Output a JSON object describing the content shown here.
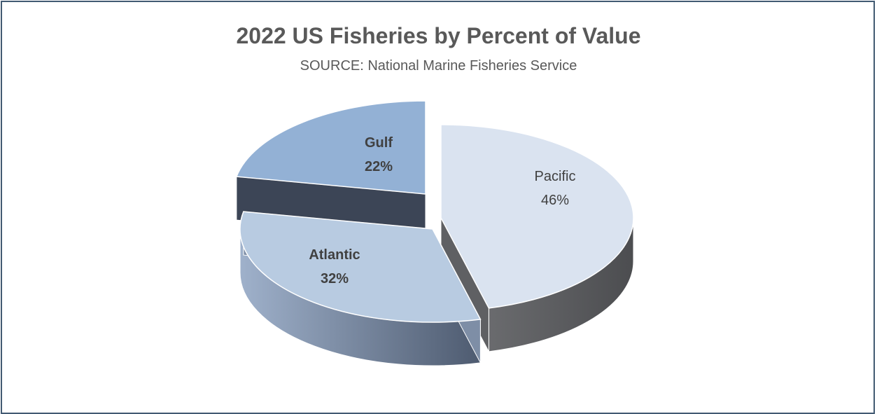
{
  "chart_data": {
    "type": "pie",
    "title": "2022 US Fisheries by Percent of Value",
    "subtitle": "SOURCE: National Marine Fisheries Service",
    "slices": [
      {
        "name": "Pacific",
        "value": 46,
        "label": "46%",
        "color": "#dae3f0",
        "side_color": "#5f6063",
        "bold": false
      },
      {
        "name": "Atlantic",
        "value": 32,
        "label": "32%",
        "color": "#b8cbe1",
        "side_color": "#7e8ea6",
        "bold": true
      },
      {
        "name": "Gulf",
        "value": 22,
        "label": "22%",
        "color": "#93b1d5",
        "side_color": "#3c4556",
        "bold": true
      }
    ],
    "style": "3d-exploded",
    "legend": "none"
  }
}
